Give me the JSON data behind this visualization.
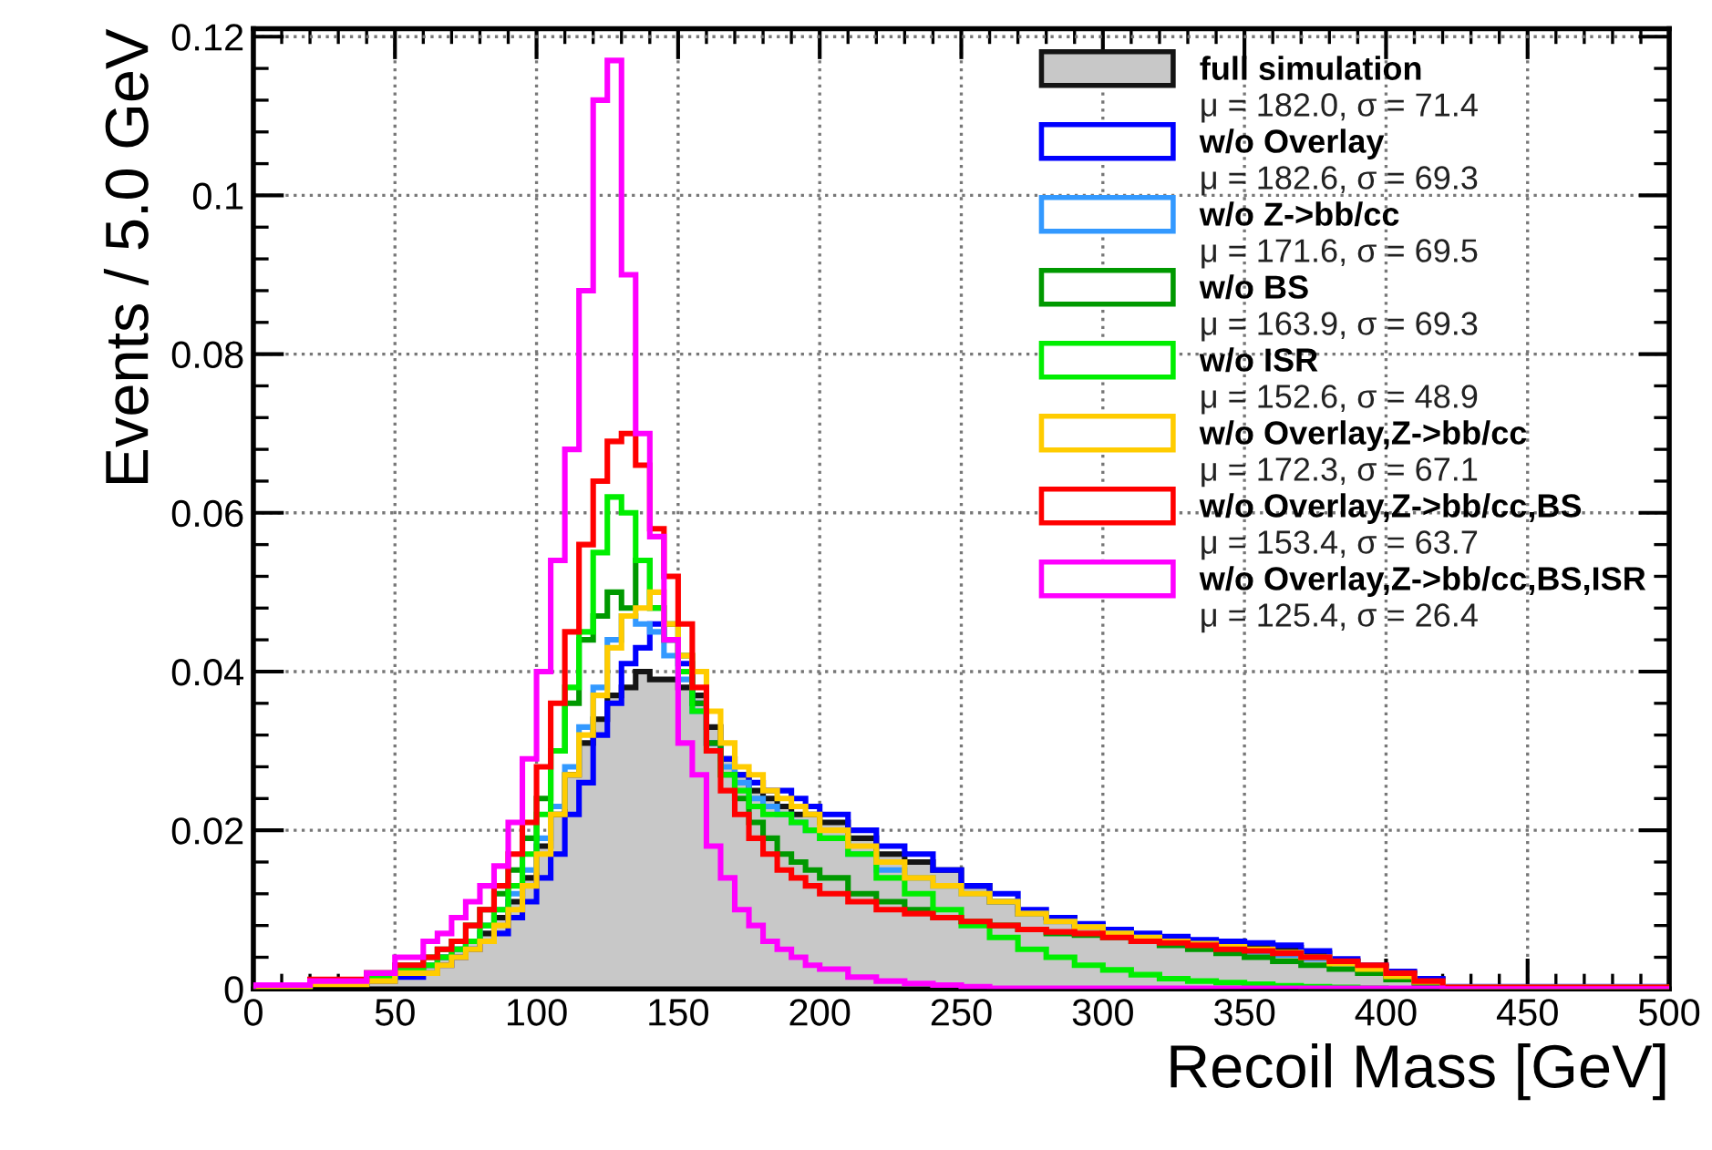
{
  "chart_data": {
    "type": "histogram",
    "xlabel": "Recoil Mass [GeV]",
    "ylabel": "Events / 5.0 GeV",
    "bins": [
      0,
      20,
      40,
      50,
      60,
      65,
      70,
      75,
      80,
      85,
      90,
      95,
      100,
      105,
      110,
      115,
      120,
      125,
      130,
      135,
      140,
      145,
      150,
      155,
      160,
      165,
      170,
      175,
      180,
      185,
      190,
      195,
      200,
      210,
      220,
      230,
      240,
      250,
      260,
      270,
      280,
      290,
      300,
      310,
      320,
      330,
      340,
      350,
      360,
      370,
      380,
      390,
      400,
      410,
      420,
      500
    ],
    "xlim": [
      0,
      500
    ],
    "xticks": [
      0,
      50,
      100,
      150,
      200,
      250,
      300,
      350,
      400,
      450,
      500
    ],
    "ylim": [
      0,
      0.121
    ],
    "yticks": [
      0,
      0.02,
      0.04,
      0.06,
      0.08,
      0.1,
      0.12
    ],
    "grid": true,
    "legend": "top right",
    "series": [
      {
        "name": "full simulation",
        "color": "#c8c8c8",
        "values": [
          0.0003,
          0.0008,
          0.0015,
          0.002,
          0.003,
          0.004,
          0.005,
          0.006,
          0.007,
          0.009,
          0.011,
          0.014,
          0.018,
          0.022,
          0.027,
          0.031,
          0.034,
          0.037,
          0.038,
          0.04,
          0.039,
          0.039,
          0.038,
          0.037,
          0.033,
          0.029,
          0.027,
          0.025,
          0.024,
          0.023,
          0.022,
          0.022,
          0.021,
          0.019,
          0.017,
          0.016,
          0.015,
          0.013,
          0.011,
          0.0095,
          0.009,
          0.008,
          0.0072,
          0.0066,
          0.0062,
          0.006,
          0.0058,
          0.0055,
          0.0052,
          0.0045,
          0.0035,
          0.0028,
          0.002,
          0.0012,
          0.0002
        ]
      },
      {
        "name": "w/o Overlay",
        "color": "#0000ff",
        "values": [
          0.0002,
          0.0006,
          0.001,
          0.0015,
          0.002,
          0.003,
          0.004,
          0.005,
          0.006,
          0.007,
          0.009,
          0.011,
          0.014,
          0.017,
          0.022,
          0.026,
          0.032,
          0.036,
          0.041,
          0.043,
          0.046,
          0.044,
          0.041,
          0.036,
          0.031,
          0.029,
          0.027,
          0.026,
          0.025,
          0.025,
          0.024,
          0.023,
          0.022,
          0.02,
          0.018,
          0.017,
          0.015,
          0.013,
          0.012,
          0.01,
          0.009,
          0.0082,
          0.0075,
          0.007,
          0.0066,
          0.0062,
          0.006,
          0.0058,
          0.0055,
          0.0048,
          0.0038,
          0.003,
          0.0022,
          0.0013,
          0.0003
        ]
      },
      {
        "name": "w/o Z->bb/cc",
        "color": "#3399ff",
        "values": [
          0.0003,
          0.0008,
          0.0015,
          0.002,
          0.003,
          0.004,
          0.005,
          0.006,
          0.008,
          0.01,
          0.012,
          0.015,
          0.019,
          0.023,
          0.028,
          0.033,
          0.038,
          0.044,
          0.047,
          0.046,
          0.045,
          0.042,
          0.039,
          0.035,
          0.031,
          0.028,
          0.026,
          0.024,
          0.023,
          0.022,
          0.021,
          0.02,
          0.019,
          0.017,
          0.015,
          0.014,
          0.013,
          0.012,
          0.011,
          0.0095,
          0.0085,
          0.0078,
          0.007,
          0.0065,
          0.006,
          0.0055,
          0.005,
          0.0047,
          0.0043,
          0.0038,
          0.003,
          0.0023,
          0.0015,
          0.0008,
          0.0002
        ]
      },
      {
        "name": "w/o BS",
        "color": "#009900",
        "values": [
          0.0004,
          0.001,
          0.002,
          0.003,
          0.004,
          0.005,
          0.006,
          0.008,
          0.01,
          0.012,
          0.015,
          0.019,
          0.024,
          0.03,
          0.036,
          0.044,
          0.047,
          0.05,
          0.048,
          0.054,
          0.048,
          0.046,
          0.042,
          0.036,
          0.031,
          0.027,
          0.024,
          0.021,
          0.019,
          0.017,
          0.016,
          0.015,
          0.014,
          0.012,
          0.011,
          0.01,
          0.009,
          0.0085,
          0.008,
          0.0075,
          0.007,
          0.0068,
          0.0065,
          0.006,
          0.0055,
          0.005,
          0.0045,
          0.004,
          0.0035,
          0.003,
          0.0025,
          0.002,
          0.0012,
          0.0006,
          0.0001
        ]
      },
      {
        "name": "w/o ISR",
        "color": "#00ee00",
        "values": [
          0.0003,
          0.0008,
          0.0015,
          0.0025,
          0.003,
          0.004,
          0.005,
          0.006,
          0.008,
          0.01,
          0.013,
          0.017,
          0.022,
          0.03,
          0.038,
          0.045,
          0.055,
          0.062,
          0.06,
          0.054,
          0.048,
          0.044,
          0.04,
          0.035,
          0.03,
          0.027,
          0.025,
          0.023,
          0.022,
          0.022,
          0.021,
          0.02,
          0.019,
          0.017,
          0.014,
          0.012,
          0.01,
          0.008,
          0.0065,
          0.005,
          0.004,
          0.003,
          0.0024,
          0.0018,
          0.0013,
          0.001,
          0.0008,
          0.0006,
          0.0004,
          0.0003,
          0.0002,
          0.0001,
          0,
          0,
          0
        ]
      },
      {
        "name": "w/o Overlay,Z->bb/cc",
        "color": "#ffcc00",
        "values": [
          0.0002,
          0.0006,
          0.001,
          0.002,
          0.002,
          0.003,
          0.004,
          0.005,
          0.006,
          0.008,
          0.01,
          0.013,
          0.017,
          0.022,
          0.027,
          0.032,
          0.037,
          0.043,
          0.047,
          0.048,
          0.05,
          0.046,
          0.042,
          0.04,
          0.035,
          0.031,
          0.028,
          0.027,
          0.025,
          0.024,
          0.023,
          0.022,
          0.02,
          0.018,
          0.016,
          0.014,
          0.013,
          0.012,
          0.011,
          0.0095,
          0.0085,
          0.0078,
          0.007,
          0.0065,
          0.006,
          0.0057,
          0.0053,
          0.005,
          0.0046,
          0.004,
          0.0032,
          0.0025,
          0.0016,
          0.0009,
          0.0002
        ]
      },
      {
        "name": "w/o Overlay,Z->bb/cc,BS",
        "color": "#ff0000",
        "values": [
          0.0005,
          0.0012,
          0.002,
          0.003,
          0.004,
          0.005,
          0.006,
          0.008,
          0.01,
          0.013,
          0.017,
          0.021,
          0.028,
          0.036,
          0.045,
          0.056,
          0.064,
          0.069,
          0.07,
          0.066,
          0.058,
          0.052,
          0.046,
          0.038,
          0.03,
          0.025,
          0.022,
          0.019,
          0.017,
          0.015,
          0.014,
          0.013,
          0.012,
          0.011,
          0.01,
          0.0095,
          0.009,
          0.0085,
          0.008,
          0.0075,
          0.0072,
          0.007,
          0.0065,
          0.006,
          0.0058,
          0.0055,
          0.005,
          0.0048,
          0.0045,
          0.004,
          0.0035,
          0.003,
          0.002,
          0.001,
          0.0002
        ]
      },
      {
        "name": "w/o Overlay,Z->bb/cc,BS,ISR",
        "color": "#ff00ff",
        "values": [
          0.0005,
          0.001,
          0.002,
          0.004,
          0.006,
          0.007,
          0.009,
          0.011,
          0.013,
          0.0155,
          0.021,
          0.029,
          0.04,
          0.054,
          0.068,
          0.088,
          0.112,
          0.117,
          0.09,
          0.07,
          0.057,
          0.044,
          0.031,
          0.027,
          0.018,
          0.014,
          0.01,
          0.008,
          0.006,
          0.005,
          0.004,
          0.003,
          0.0025,
          0.0015,
          0.001,
          0.0007,
          0.0005,
          0.0003,
          0.0001,
          0.0001,
          0.0001,
          0.0001,
          0.0001,
          0.0001,
          0.0001,
          0.0001,
          0.0001,
          0.0001,
          0.0001,
          0.0001,
          0.0001,
          0.0001,
          0.0001,
          0.0001,
          0
        ]
      }
    ],
    "annotations": [
      "μ = 182.0, σ = 71.4",
      "μ = 182.6, σ = 69.3",
      "μ = 171.6, σ = 69.5",
      "μ = 163.9, σ = 69.3",
      "μ = 152.6, σ = 48.9",
      "μ = 172.3, σ = 67.1",
      "μ = 153.4, σ = 63.7",
      "μ = 125.4, σ = 26.4"
    ]
  }
}
